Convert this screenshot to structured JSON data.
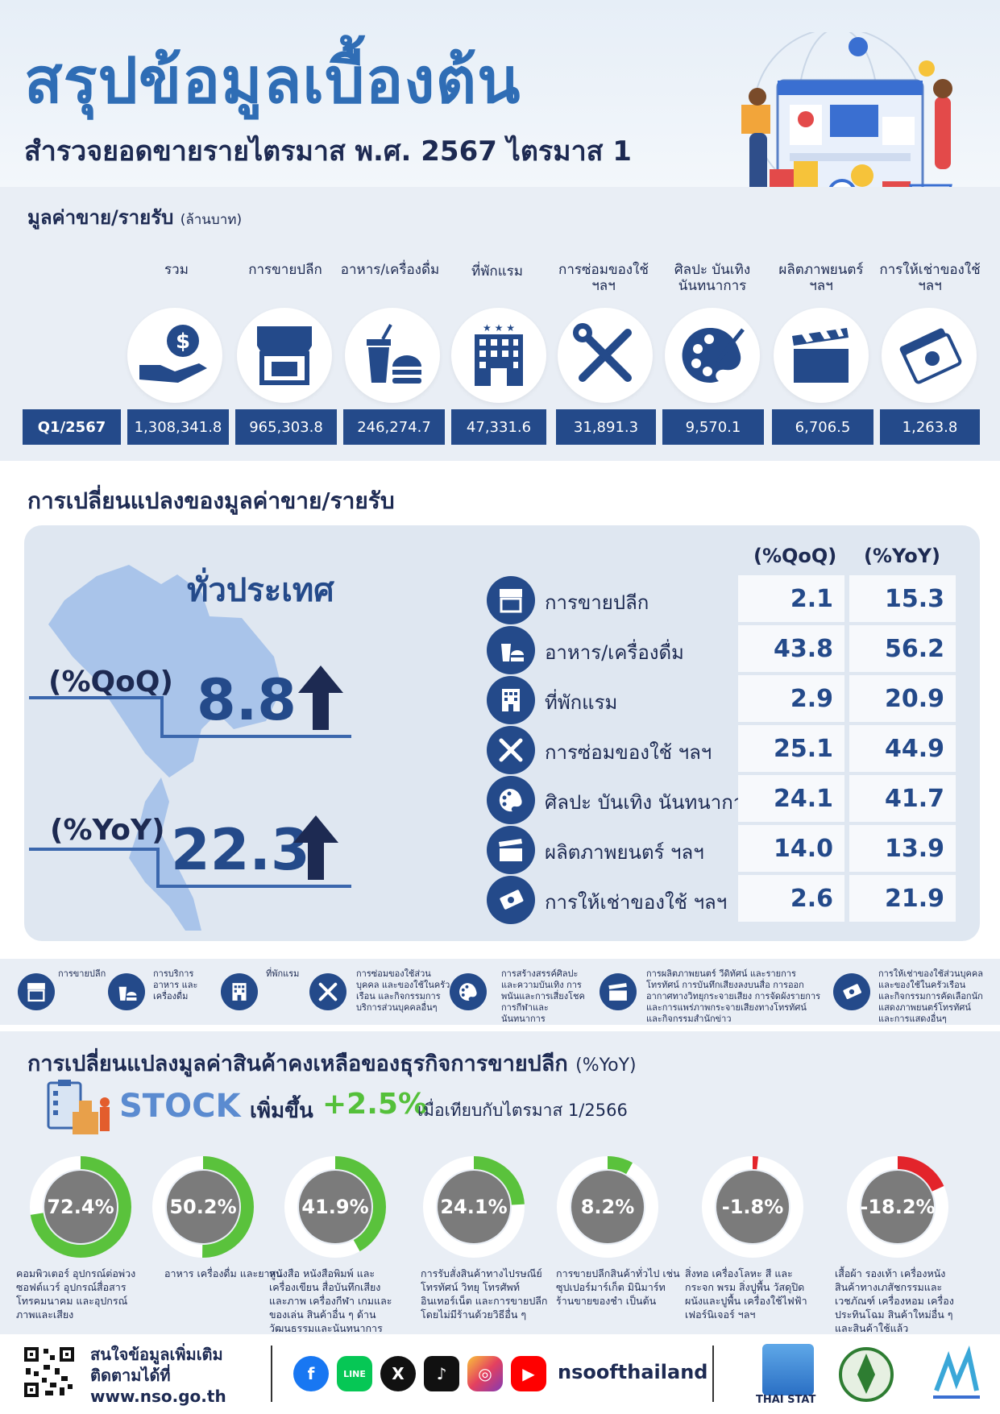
{
  "header": {
    "title": "สรุปข้อมูลเบื้องต้น",
    "subtitle": "สำรวจยอดขายรายไตรมาส พ.ศ. 2567 ไตรมาส 1"
  },
  "sales": {
    "title": "มูลค่าขาย/รายรับ",
    "unit": "(ล้านบาท)",
    "period": "Q1/2567",
    "columns": [
      {
        "label": "รวม",
        "icon": "money-hand-icon",
        "value": "1,308,341.8"
      },
      {
        "label": "การขายปลีก",
        "icon": "storefront-icon",
        "value": "965,303.8"
      },
      {
        "label": "อาหาร/เครื่องดื่ม",
        "icon": "food-drink-icon",
        "value": "246,274.7"
      },
      {
        "label": "ที่พักแรม",
        "icon": "hotel-icon",
        "value": "47,331.6"
      },
      {
        "label": "การซ่อมของใช้ ฯลฯ",
        "icon": "repair-tools-icon",
        "value": "31,891.3"
      },
      {
        "label": "ศิลปะ บันเทิง นันทนาการ",
        "icon": "art-palette-icon",
        "value": "9,570.1"
      },
      {
        "label": "ผลิตภาพยนตร์ ฯลฯ",
        "icon": "clapperboard-icon",
        "value": "6,706.5"
      },
      {
        "label": "การให้เช่าของใช้ ฯลฯ",
        "icon": "banknotes-icon",
        "value": "1,263.8"
      }
    ]
  },
  "change": {
    "title": "การเปลี่ยนแปลงของมูลค่าขาย/รายรับ",
    "nation": "ทั่วประเทศ",
    "qoq_label": "(%QoQ)",
    "qoq_value": "8.8",
    "yoy_label": "(%YoY)",
    "yoy_value": "22.3",
    "head_qoq": "(%QoQ)",
    "head_yoy": "(%YoY)",
    "rows": [
      {
        "name": "การขายปลีก",
        "icon": "storefront-icon",
        "qoq": "2.1",
        "yoy": "15.3"
      },
      {
        "name": "อาหาร/เครื่องดื่ม",
        "icon": "food-drink-icon",
        "qoq": "43.8",
        "yoy": "56.2"
      },
      {
        "name": "ที่พักแรม",
        "icon": "hotel-icon",
        "qoq": "2.9",
        "yoy": "20.9"
      },
      {
        "name": "การซ่อมของใช้ ฯลฯ",
        "icon": "repair-tools-icon",
        "qoq": "25.1",
        "yoy": "44.9"
      },
      {
        "name": "ศิลปะ บันเทิง นันทนาการ",
        "icon": "art-palette-icon",
        "qoq": "24.1",
        "yoy": "41.7"
      },
      {
        "name": "ผลิตภาพยนตร์ ฯลฯ",
        "icon": "clapperboard-icon",
        "qoq": "14.0",
        "yoy": "13.9"
      },
      {
        "name": "การให้เช่าของใช้ ฯลฯ",
        "icon": "banknotes-icon",
        "qoq": "2.6",
        "yoy": "21.9"
      }
    ]
  },
  "legend": [
    {
      "icon": "storefront-icon",
      "text": "การขายปลีก"
    },
    {
      "icon": "food-drink-icon",
      "text": "การบริการอาหาร และเครื่องดื่ม"
    },
    {
      "icon": "hotel-icon",
      "text": "ที่พักแรม"
    },
    {
      "icon": "repair-tools-icon",
      "text": "การซ่อมของใช้ส่วนบุคคล และของใช้ในครัวเรือน และกิจกรรมการบริการส่วนบุคคลอื่นๆ"
    },
    {
      "icon": "art-palette-icon",
      "text": "การสร้างสรรค์ศิลปะ และความบันเทิง การพนันและการเสี่ยงโชค การกีฬาและนันทนาการ"
    },
    {
      "icon": "clapperboard-icon",
      "text": "การผลิตภาพยนตร์ วีดิทัศน์ และรายการโทรทัศน์ การบันทึกเสียงลงบนสื่อ การออกอากาศทางวิทยุกระจายเสียง การจัดผังรายการและการแพร่ภาพกระจายเสียงทางโทรทัศน์ และกิจกรรมสำนักข่าว"
    },
    {
      "icon": "banknotes-icon",
      "text": "การให้เช่าของใช้ส่วนบุคคล และของใช้ในครัวเรือน และกิจกรรมการคัดเลือกนักแสดงภาพยนตร์โทรทัศน์ และการแสดงอื่นๆ"
    }
  ],
  "stock": {
    "title": "การเปลี่ยนแปลงมูลค่าสินค้าคงเหลือของธุรกิจการขายปลีก",
    "unit": "(%YoY)",
    "word": "STOCK",
    "increase_label": "เพิ่มขึ้น",
    "increase_value": "+2.5%",
    "compare": "เมื่อเทียบกับไตรมาส 1/2566",
    "icon": "clipboard-boxes-icon",
    "items": [
      {
        "pct": 72.4,
        "label": "72.4%",
        "desc": "คอมพิวเตอร์ อุปกรณ์ต่อพ่วง ซอฟต์แวร์ อุปกรณ์สื่อสารโทรคมนาคม และอุปกรณ์ภาพและเสียง"
      },
      {
        "pct": 50.2,
        "label": "50.2%",
        "desc": "อาหาร เครื่องดื่ม และยาสูบ"
      },
      {
        "pct": 41.9,
        "label": "41.9%",
        "desc": "หนังสือ หนังสือพิมพ์ และเครื่องเขียน สื่อบันทึกเสียงและภาพ เครื่องกีฬา เกมและของเล่น สินค้าอื่น ๆ ด้านวัฒนธรรมและนันทนาการ"
      },
      {
        "pct": 24.1,
        "label": "24.1%",
        "desc": "การรับสั่งสินค้าทางไปรษณีย์ โทรทัศน์ วิทยุ โทรศัพท์ อินเทอร์เน็ต และการขายปลีกโดยไม่มีร้านด้วยวิธีอื่น ๆ"
      },
      {
        "pct": 8.2,
        "label": "8.2%",
        "desc": "การขายปลีกสินค้าทั่วไป เช่น ซุปเปอร์มาร์เก็ต มินิมาร์ท ร้านขายของชำ เป็นต้น"
      },
      {
        "pct": -1.8,
        "label": "-1.8%",
        "desc": "สิ่งทอ เครื่องโลหะ สี และกระจก พรม สิ่งปูพื้น วัสดุปิดผนังและปูพื้น เครื่องใช้ไฟฟ้า เฟอร์นิเจอร์ ฯลฯ"
      },
      {
        "pct": -18.2,
        "label": "-18.2%",
        "desc": "เสื้อผ้า รองเท้า เครื่องหนัง สินค้าทางเภสัชกรรมและเวชภัณฑ์ เครื่องหอม เครื่องประทินโฉม สินค้าใหม่อื่น ๆ และสินค้าใช้แล้ว"
      }
    ],
    "colors": {
      "positive": "#5ac23c",
      "negative": "#e3242b",
      "track": "#ffffff",
      "center": "#7b7b7b"
    }
  },
  "footer": {
    "line1": "สนใจข้อมูลเพิ่มเติม",
    "line2": "ติดตามได้ที่",
    "url": "www.nso.go.th",
    "handle": "nsoofthailand",
    "thaistat": "THAI STAT",
    "socials": [
      "facebook-icon",
      "line-icon",
      "x-icon",
      "tiktok-icon",
      "instagram-icon",
      "youtube-icon"
    ],
    "line_text": "LINE"
  }
}
